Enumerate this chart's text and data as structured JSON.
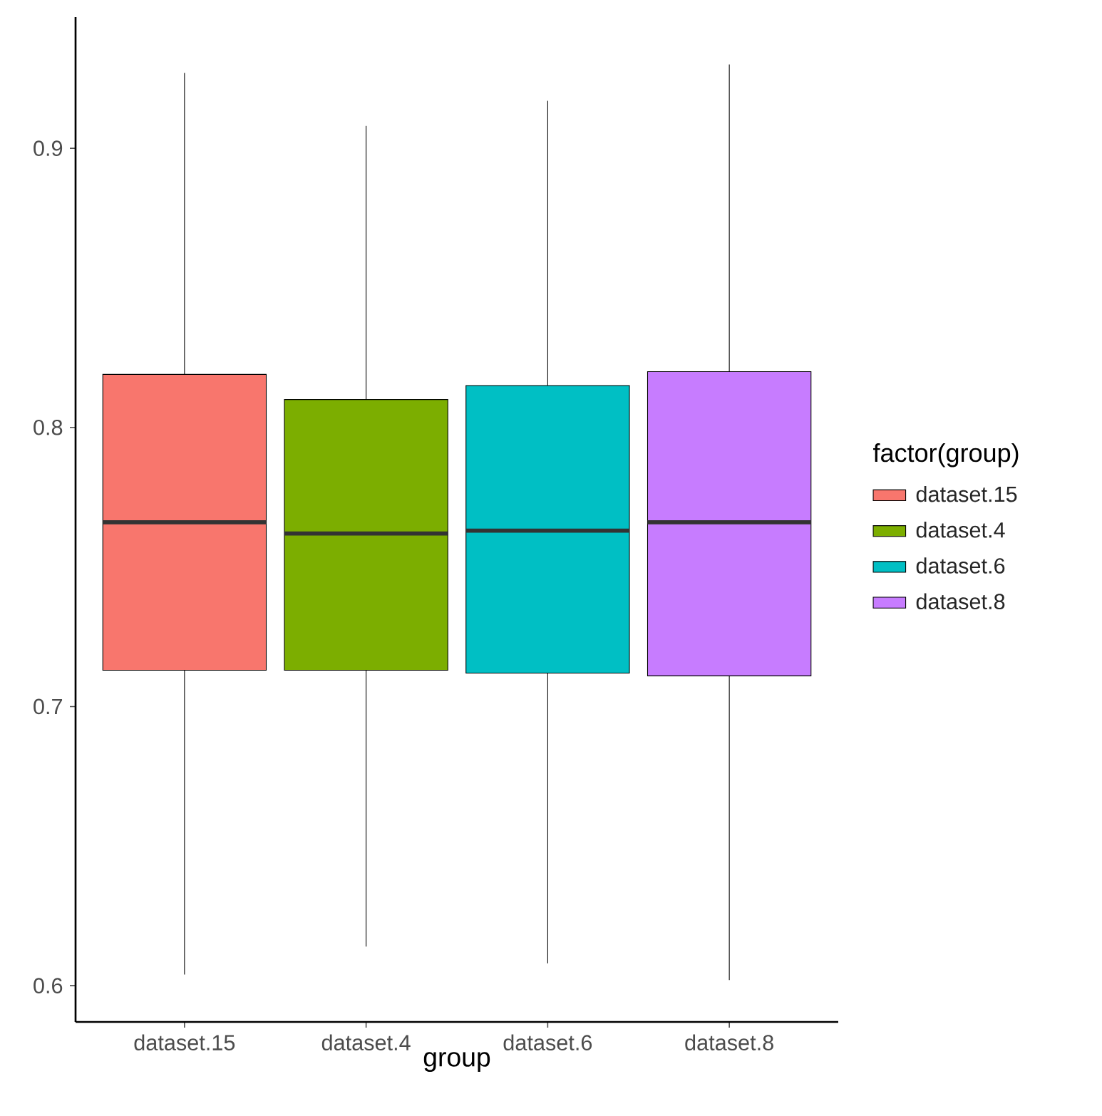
{
  "chart_data": {
    "type": "box",
    "xlabel": "group",
    "legend_title": "factor(group)",
    "legend": "right",
    "categories": [
      "dataset.15",
      "dataset.4",
      "dataset.6",
      "dataset.8"
    ],
    "series": [
      {
        "name": "dataset.15",
        "color": "#f8766d",
        "boxes": [
          {
            "low": 0.604,
            "q1": 0.713,
            "median": 0.766,
            "q3": 0.819,
            "high": 0.927
          },
          null,
          null,
          null
        ]
      },
      {
        "name": "dataset.4",
        "color": "#7cae00",
        "boxes": [
          null,
          {
            "low": 0.614,
            "q1": 0.713,
            "median": 0.762,
            "q3": 0.81,
            "high": 0.908
          },
          null,
          null
        ]
      },
      {
        "name": "dataset.6",
        "color": "#00bfc4",
        "boxes": [
          null,
          null,
          {
            "low": 0.608,
            "q1": 0.712,
            "median": 0.763,
            "q3": 0.815,
            "high": 0.917
          },
          null
        ]
      },
      {
        "name": "dataset.8",
        "color": "#c77cff",
        "boxes": [
          null,
          null,
          null,
          {
            "low": 0.602,
            "q1": 0.711,
            "median": 0.766,
            "q3": 0.82,
            "high": 0.93
          }
        ]
      }
    ],
    "ylim": [
      0.587,
      0.947
    ],
    "yticks": [
      0.6,
      0.7,
      0.8,
      0.9
    ]
  }
}
